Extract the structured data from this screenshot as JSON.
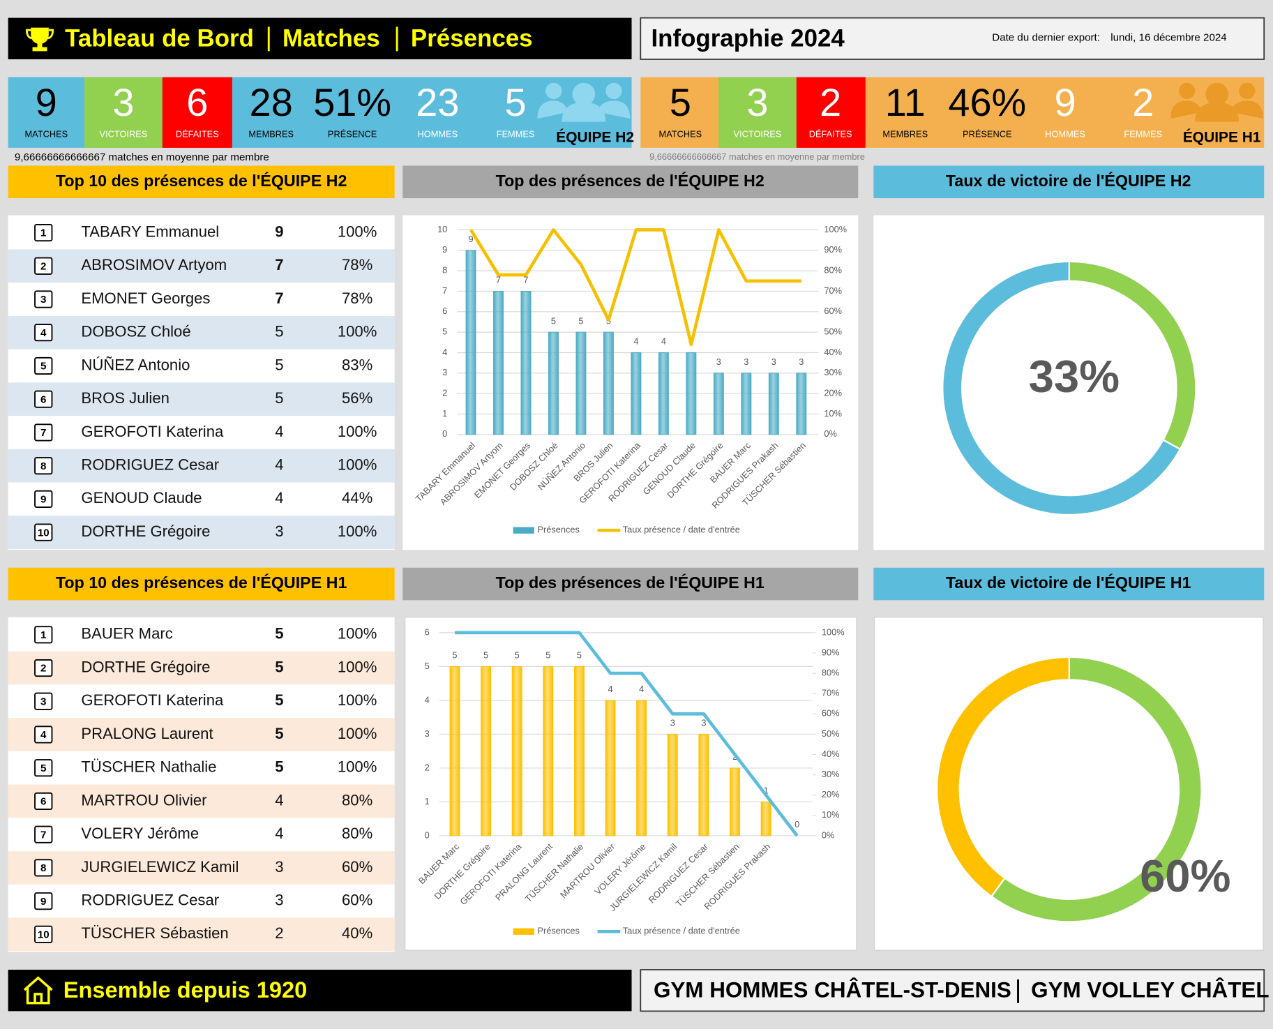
{
  "header": {
    "title": [
      "Tableau de Bord",
      "Matches",
      "Présences"
    ],
    "subtitle": "Infographie 2024",
    "export_label": "Date du dernier export:",
    "export_date": "lundi, 16 décembre 2024"
  },
  "teams": [
    {
      "team": "ÉQUIPE H2",
      "average": "9,66666666666667 matches en moyenne par membre",
      "stats": [
        {
          "value": "9",
          "label": "MATCHES"
        },
        {
          "value": "3",
          "label": "VICTOIRES"
        },
        {
          "value": "6",
          "label": "DÉFAITES"
        },
        {
          "value": "28",
          "label": "MEMBRES"
        },
        {
          "value": "51%",
          "label": "PRÉSENCE"
        },
        {
          "value": "23",
          "label": "HOMMES"
        },
        {
          "value": "5",
          "label": "FEMMES"
        }
      ]
    },
    {
      "team": "ÉQUIPE H1",
      "average": "9,66666666666667 matches en moyenne par membre",
      "stats": [
        {
          "value": "5",
          "label": "MATCHES"
        },
        {
          "value": "3",
          "label": "VICTOIRES"
        },
        {
          "value": "2",
          "label": "DÉFAITES"
        },
        {
          "value": "11",
          "label": "MEMBRES"
        },
        {
          "value": "46%",
          "label": "PRÉSENCE"
        },
        {
          "value": "9",
          "label": "HOMMES"
        },
        {
          "value": "2",
          "label": "FEMMES"
        }
      ]
    }
  ],
  "sections": [
    {
      "top10": "Top 10 des présences de l'ÉQUIPE H2",
      "chart": "Top des présences de l'ÉQUIPE H2",
      "win": "Taux de victoire de l'ÉQUIPE H2",
      "rows": [
        [
          "1",
          "TABARY Emmanuel",
          "9",
          "100%"
        ],
        [
          "2",
          "ABROSIMOV Artyom",
          "7",
          "78%"
        ],
        [
          "3",
          "EMONET Georges",
          "7",
          "78%"
        ],
        [
          "4",
          "DOBOSZ Chloé",
          "5",
          "100%"
        ],
        [
          "5",
          "NÚÑEZ Antonio",
          "5",
          "83%"
        ],
        [
          "6",
          "BROS Julien",
          "5",
          "56%"
        ],
        [
          "7",
          "GEROFOTI Katerina",
          "4",
          "100%"
        ],
        [
          "8",
          "RODRIGUEZ Cesar",
          "4",
          "100%"
        ],
        [
          "9",
          "GENOUD Claude",
          "4",
          "44%"
        ],
        [
          "10",
          "DORTHE Grégoire",
          "3",
          "100%"
        ]
      ]
    },
    {
      "top10": "Top 10 des présences de l'ÉQUIPE H1",
      "chart": "Top des présences de l'ÉQUIPE H1",
      "win": "Taux de victoire de l'ÉQUIPE H1",
      "rows": [
        [
          "1",
          "BAUER Marc",
          "5",
          "100%"
        ],
        [
          "2",
          "DORTHE Grégoire",
          "5",
          "100%"
        ],
        [
          "3",
          "GEROFOTI Katerina",
          "5",
          "100%"
        ],
        [
          "4",
          "PRALONG Laurent",
          "5",
          "100%"
        ],
        [
          "5",
          "TÜSCHER Nathalie",
          "5",
          "100%"
        ],
        [
          "6",
          "MARTROU Olivier",
          "4",
          "80%"
        ],
        [
          "7",
          "VOLERY Jérôme",
          "4",
          "80%"
        ],
        [
          "8",
          "JURGIELEWICZ Kamil",
          "3",
          "60%"
        ],
        [
          "9",
          "RODRIGUEZ Cesar",
          "3",
          "60%"
        ],
        [
          "10",
          "TÜSCHER Sébastien",
          "2",
          "40%"
        ]
      ]
    }
  ],
  "chart_data": [
    {
      "type": "bar",
      "legend": "bottom",
      "grid": true,
      "categories": [
        "TABARY Emmanuel",
        "ABROSIMOV Artyom",
        "EMONET Georges",
        "DOBOSZ Chloé",
        "NÚÑEZ Antonio",
        "BROS Julien",
        "GEROFOTI Katerina",
        "RODRIGUEZ Cesar",
        "GENOUD Claude",
        "DORTHE Grégoire",
        "BAUER Marc",
        "RODRIGUES Prakash",
        "TÜSCHER Sébastien"
      ],
      "series": [
        {
          "name": "Présences",
          "color": "#4bacc6",
          "values": [
            9,
            7,
            7,
            5,
            5,
            5,
            4,
            4,
            4,
            3,
            3,
            3,
            3
          ]
        },
        {
          "name": "Taux présence / date d'entrée",
          "color": "#f5c000",
          "type": "line",
          "axis": "y2",
          "values": [
            100,
            78,
            78,
            100,
            83,
            56,
            100,
            100,
            44,
            100,
            75,
            75,
            75
          ]
        }
      ],
      "ylim": [
        0,
        10
      ],
      "yticks": [
        0,
        1,
        2,
        3,
        4,
        5,
        6,
        7,
        8,
        9,
        10
      ],
      "y2lim": [
        0,
        100
      ],
      "y2ticks": [
        {
          "value": 0,
          "label": "0%"
        },
        {
          "value": 10,
          "label": "10%"
        },
        {
          "value": 20,
          "label": "20%"
        },
        {
          "value": 30,
          "label": "30%"
        },
        {
          "value": 40,
          "label": "40%"
        },
        {
          "value": 50,
          "label": "50%"
        },
        {
          "value": 60,
          "label": "60%"
        },
        {
          "value": 70,
          "label": "70%"
        },
        {
          "value": 80,
          "label": "80%"
        },
        {
          "value": 90,
          "label": "90%"
        },
        {
          "value": 100,
          "label": "100%"
        }
      ]
    },
    {
      "type": "bar",
      "legend": "bottom",
      "grid": true,
      "categories": [
        "BAUER Marc",
        "DORTHE Grégoire",
        "GEROFOTI Katerina",
        "PRALONG Laurent",
        "TÜSCHER Nathalie",
        "MARTROU Olivier",
        "VOLERY Jérôme",
        "JURGIELEWICZ Kamil",
        "RODRIGUEZ Cesar",
        "TÜSCHER Sébastien",
        "RODRIGUES Prakash",
        null
      ],
      "series": [
        {
          "name": "Présences",
          "color": "#ffc000",
          "values": [
            5,
            5,
            5,
            5,
            5,
            4,
            4,
            3,
            3,
            2,
            1,
            0
          ]
        },
        {
          "name": "Taux présence / date d'entrée",
          "color": "#5bbcdc",
          "type": "line",
          "axis": "y2",
          "values": [
            100,
            100,
            100,
            100,
            100,
            80,
            80,
            60,
            60,
            40,
            20,
            0
          ]
        }
      ],
      "ylim": [
        0,
        6
      ],
      "yticks": [
        0,
        1,
        2,
        3,
        4,
        5,
        6
      ],
      "y2lim": [
        0,
        100
      ],
      "y2ticks": [
        {
          "value": 0,
          "label": "0%"
        },
        {
          "value": 10,
          "label": "10%"
        },
        {
          "value": 20,
          "label": "20%"
        },
        {
          "value": 30,
          "label": "30%"
        },
        {
          "value": 40,
          "label": "40%"
        },
        {
          "value": 50,
          "label": "50%"
        },
        {
          "value": 60,
          "label": "60%"
        },
        {
          "value": 70,
          "label": "70%"
        },
        {
          "value": 80,
          "label": "80%"
        },
        {
          "value": 90,
          "label": "90%"
        },
        {
          "value": 100,
          "label": "100%"
        }
      ]
    },
    {
      "type": "pie",
      "donut": true,
      "values": [
        33,
        67
      ],
      "value_labels": [
        "33%",
        null
      ],
      "colors": [
        "#92d050",
        "#5bbcdc"
      ]
    },
    {
      "type": "pie",
      "donut": true,
      "values": [
        60,
        40
      ],
      "value_labels": [
        "60%",
        null
      ],
      "colors": [
        "#92d050",
        "#ffc000"
      ]
    }
  ],
  "footer": {
    "motto": "Ensemble depuis 1920",
    "clubs": [
      "GYM HOMMES CHÂTEL-ST-DENIS",
      "GYM VOLLEY CHÂTEL"
    ]
  }
}
